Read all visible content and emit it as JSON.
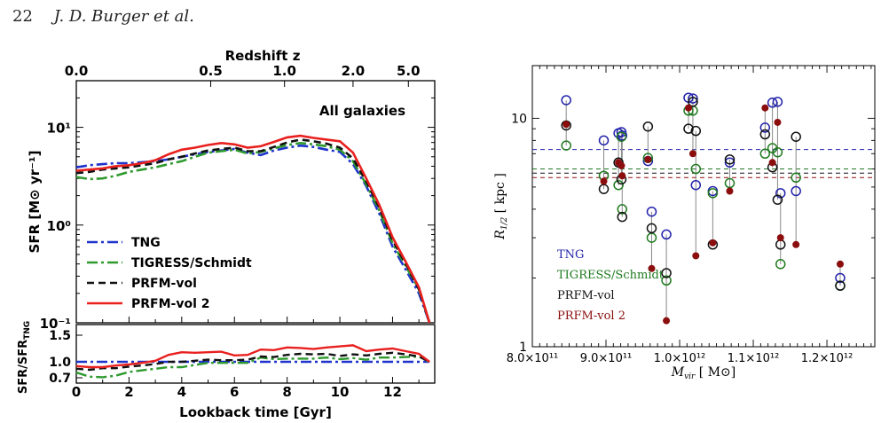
{
  "header": {
    "page_number": "22",
    "authors": "J. D. Burger et al."
  },
  "chart_data": [
    {
      "type": "line",
      "annotation": "All galaxies",
      "xlabel": "Lookback time [Gyr]",
      "ylabel": "SFR [M⊙ yr⁻¹]",
      "top_axis_label": "Redshift z",
      "top_ticks": [
        {
          "label": "0.0",
          "t": 0
        },
        {
          "label": "0.5",
          "t": 5.1
        },
        {
          "label": "1.0",
          "t": 7.9
        },
        {
          "label": "2.0",
          "t": 10.5
        },
        {
          "label": "5.0",
          "t": 12.6
        }
      ],
      "xlim": [
        0,
        13.6
      ],
      "ylim": [
        0.1,
        30
      ],
      "log_y": true,
      "yticks": [
        "10⁻¹",
        "10⁰",
        "10¹"
      ],
      "xticks": [
        "0",
        "2",
        "4",
        "6",
        "8",
        "10",
        "12"
      ],
      "legend_position": "lower-left",
      "x": [
        0,
        0.5,
        1,
        1.5,
        2,
        2.5,
        3,
        3.5,
        4,
        4.5,
        5,
        5.5,
        6,
        6.5,
        7,
        7.5,
        8,
        8.5,
        9,
        9.5,
        10,
        10.5,
        11,
        11.5,
        12,
        12.5,
        13,
        13.4
      ],
      "series": [
        {
          "name": "TNG",
          "color": "#1f33cc",
          "dash": "12,4,3,4",
          "values": [
            3.9,
            4.1,
            4.2,
            4.3,
            4.3,
            4.4,
            4.5,
            4.7,
            5.0,
            5.3,
            5.6,
            5.8,
            6.0,
            5.5,
            5.2,
            5.8,
            6.2,
            6.5,
            6.3,
            5.9,
            5.6,
            4.2,
            2.5,
            1.3,
            0.6,
            0.35,
            0.2,
            0.1
          ]
        },
        {
          "name": "TIGRESS/Schmidt",
          "color": "#2e9a2e",
          "dash": "12,4,3,4",
          "values": [
            3.1,
            2.95,
            3.0,
            3.2,
            3.5,
            3.7,
            3.9,
            4.2,
            4.5,
            5.0,
            5.5,
            5.7,
            5.9,
            5.4,
            5.6,
            6.1,
            6.6,
            6.9,
            6.7,
            6.4,
            5.9,
            4.5,
            2.6,
            1.4,
            0.65,
            0.38,
            0.22,
            0.1
          ]
        },
        {
          "name": "PRFM-vol",
          "color": "#111111",
          "dash": "8,5",
          "values": [
            3.4,
            3.5,
            3.7,
            3.8,
            3.9,
            4.1,
            4.3,
            4.7,
            5.0,
            5.4,
            5.8,
            6.0,
            6.2,
            5.7,
            5.7,
            6.3,
            7.0,
            7.5,
            7.2,
            6.8,
            6.2,
            4.8,
            2.8,
            1.5,
            0.7,
            0.4,
            0.22,
            0.1
          ]
        },
        {
          "name": "PRFM-vol 2",
          "color": "#e8201e",
          "dash": "",
          "values": [
            3.6,
            3.7,
            3.8,
            4.0,
            4.1,
            4.3,
            4.6,
            5.3,
            5.9,
            6.2,
            6.6,
            6.9,
            6.7,
            6.2,
            6.4,
            7.1,
            7.9,
            8.2,
            7.8,
            7.5,
            7.2,
            5.5,
            3.0,
            1.6,
            0.75,
            0.42,
            0.23,
            0.1
          ]
        }
      ]
    },
    {
      "type": "line",
      "ylabel": "SFR/SFR",
      "ylabel_sub": "TNG",
      "ylim": [
        0.6,
        1.7
      ],
      "yticks": [
        "0.7",
        "1.0",
        "1.5"
      ],
      "series_ratio": [
        {
          "name": "TNG",
          "values": [
            1.0,
            1.0,
            1.0,
            1.0,
            1.0,
            1.0,
            1.0,
            1.0,
            1.0,
            1.0,
            1.0,
            1.0,
            1.0,
            1.0,
            1.0,
            1.0,
            1.0,
            1.0,
            1.0,
            1.0,
            1.0,
            1.0,
            1.0,
            1.0,
            1.0,
            1.0,
            1.0,
            1.0
          ]
        },
        {
          "name": "TIGRESS/Schmidt",
          "values": [
            0.8,
            0.72,
            0.71,
            0.74,
            0.81,
            0.84,
            0.87,
            0.9,
            0.9,
            0.94,
            0.98,
            0.98,
            0.98,
            0.98,
            1.08,
            1.05,
            1.06,
            1.06,
            1.06,
            1.08,
            1.05,
            1.07,
            1.04,
            1.08,
            1.08,
            1.09,
            1.1,
            1.0
          ]
        },
        {
          "name": "PRFM-vol",
          "values": [
            0.87,
            0.85,
            0.88,
            0.88,
            0.91,
            0.93,
            0.96,
            1.0,
            1.0,
            1.02,
            1.04,
            1.03,
            1.03,
            1.04,
            1.1,
            1.09,
            1.13,
            1.15,
            1.14,
            1.15,
            1.11,
            1.14,
            1.12,
            1.15,
            1.17,
            1.14,
            1.1,
            1.0
          ]
        },
        {
          "name": "PRFM-vol 2",
          "values": [
            0.92,
            0.9,
            0.9,
            0.93,
            0.95,
            0.98,
            1.02,
            1.13,
            1.18,
            1.17,
            1.18,
            1.19,
            1.12,
            1.13,
            1.23,
            1.22,
            1.27,
            1.26,
            1.24,
            1.27,
            1.29,
            1.31,
            1.2,
            1.23,
            1.25,
            1.2,
            1.15,
            1.0
          ]
        }
      ]
    },
    {
      "type": "scatter",
      "xlabel": "M",
      "xlabel_sub": "vir",
      "xlabel_unit": "[ M⊙]",
      "ylabel": "R",
      "ylabel_sub": "1/2",
      "ylabel_unit": "[ kpc ]",
      "xlim": [
        800000000000.0,
        1265000000000.0
      ],
      "ylim": [
        1,
        17
      ],
      "log_y": true,
      "xticks": [
        "8.0×10¹¹",
        "9.0×10¹¹",
        "1.0×10¹²",
        "1.1×10¹²",
        "1.2×10¹²"
      ],
      "yticks": [
        "1",
        "10"
      ],
      "legend": [
        {
          "name": "TNG",
          "color": "#2222aa"
        },
        {
          "name": "TIGRESS/Schmidt",
          "color": "#1f7a1f"
        },
        {
          "name": "PRFM-vol",
          "color": "#111111"
        },
        {
          "name": "PRFM-vol 2",
          "color": "#8b0d0d"
        }
      ],
      "medians": [
        7.3,
        6.0,
        5.75,
        5.5
      ],
      "x": [
        846000000000.0,
        897000000000.0,
        917000000000.0,
        921000000000.0,
        922000000000.0,
        957000000000.0,
        962000000000.0,
        982000000000.0,
        1012000000000.0,
        1018000000000.0,
        1022000000000.0,
        1045000000000.0,
        1068000000000.0,
        1116000000000.0,
        1126000000000.0,
        1133000000000.0,
        1137000000000.0,
        1158000000000.0,
        1218000000000.0
      ],
      "series": [
        {
          "name": "TNG",
          "values": [
            12.0,
            8.0,
            8.6,
            8.7,
            8.4,
            6.5,
            3.9,
            3.1,
            12.3,
            12.2,
            5.1,
            4.8,
            6.4,
            9.1,
            11.7,
            11.8,
            4.7,
            4.8,
            2.0
          ]
        },
        {
          "name": "TIGRESS/Schmidt",
          "values": [
            7.6,
            5.6,
            5.1,
            8.3,
            4.0,
            6.7,
            3.0,
            1.95,
            10.8,
            10.8,
            6.0,
            4.7,
            5.2,
            7.0,
            7.4,
            7.1,
            2.3,
            5.5,
            1.85
          ]
        },
        {
          "name": "PRFM-vol",
          "values": [
            9.3,
            4.9,
            6.4,
            5.4,
            3.7,
            9.2,
            3.3,
            2.1,
            9.0,
            11.8,
            8.8,
            2.8,
            6.6,
            8.5,
            6.1,
            4.4,
            2.8,
            8.3,
            1.85
          ]
        },
        {
          "name": "PRFM-vol 2",
          "values": [
            9.4,
            5.3,
            6.4,
            6.2,
            5.6,
            6.6,
            2.2,
            1.3,
            11.1,
            7.0,
            2.5,
            2.85,
            4.8,
            11.1,
            6.4,
            9.6,
            3.0,
            2.8,
            2.3
          ]
        }
      ]
    }
  ]
}
